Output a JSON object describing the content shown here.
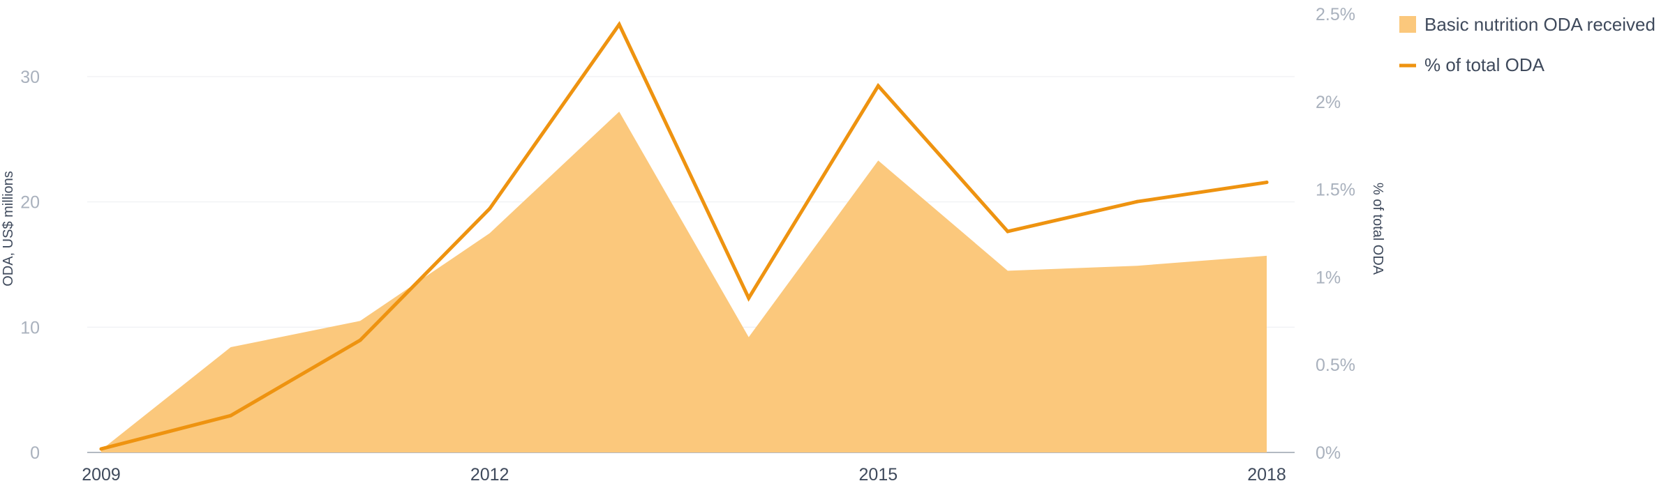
{
  "chart_data": {
    "type": "area+line",
    "x": [
      2009,
      2010,
      2011,
      2012,
      2013,
      2014,
      2015,
      2016,
      2017,
      2018
    ],
    "x_tick_labels": [
      "2009",
      "2012",
      "2015",
      "2018"
    ],
    "series": [
      {
        "name": "Basic nutrition ODA received",
        "kind": "area",
        "axis": "left",
        "color": "#fbc87c",
        "values": [
          0.2,
          8.4,
          10.5,
          17.5,
          27.2,
          9.2,
          23.3,
          14.5,
          14.9,
          15.7
        ]
      },
      {
        "name": "% of total ODA",
        "kind": "line",
        "axis": "right",
        "color": "#ee9310",
        "values": [
          0.02,
          0.21,
          0.64,
          1.39,
          2.44,
          0.88,
          2.09,
          1.26,
          1.43,
          1.54
        ]
      }
    ],
    "y_left": {
      "label": "ODA, US$ millions",
      "range": [
        0,
        35
      ],
      "ticks": [
        0,
        10,
        20,
        30
      ],
      "tick_labels": [
        "0",
        "10",
        "20",
        "30"
      ]
    },
    "y_right": {
      "label": "% of total ODA",
      "range": [
        0,
        2.5
      ],
      "ticks": [
        0,
        0.5,
        1,
        1.5,
        2,
        2.5
      ],
      "tick_labels": [
        "0%",
        "0.5%",
        "1%",
        "1.5%",
        "2%",
        "2.5%"
      ]
    },
    "grid": true,
    "legend_position": "top-right"
  }
}
